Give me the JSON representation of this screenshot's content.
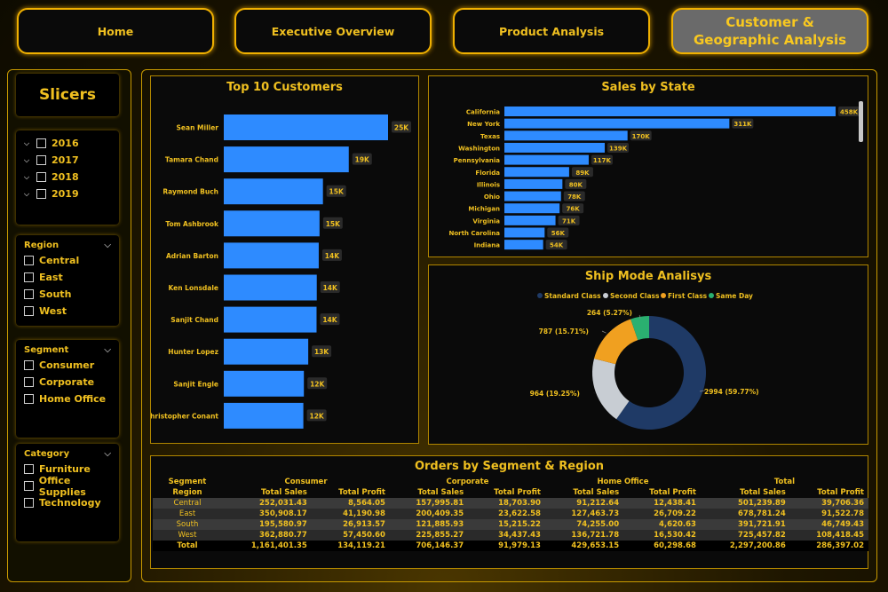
{
  "nav": {
    "home": "Home",
    "executive": "Executive Overview",
    "product": "Product Analysis",
    "customer": "Customer & Geographic Analysis"
  },
  "slicers": {
    "title": "Slicers",
    "years": [
      "2016",
      "2017",
      "2018",
      "2019"
    ],
    "region": {
      "title": "Region",
      "items": [
        "Central",
        "East",
        "South",
        "West"
      ]
    },
    "segment": {
      "title": "Segment",
      "items": [
        "Consumer",
        "Corporate",
        "Home Office"
      ]
    },
    "category": {
      "title": "Category",
      "items": [
        "Furniture",
        "Office Supplies",
        "Technology"
      ]
    }
  },
  "top_customers": {
    "title": "Top 10 Customers"
  },
  "sales_by_state": {
    "title": "Sales by State"
  },
  "ship_mode": {
    "title": "Ship Mode Analisys"
  },
  "orders": {
    "title": "Orders by Segment & Region",
    "seg_label": "Segment",
    "region_label": "Region",
    "segments": [
      "Consumer",
      "Corporate",
      "Home Office",
      "Total"
    ],
    "sub_headers": [
      "Total Sales",
      "Total Profit"
    ],
    "rows": [
      {
        "region": "Central",
        "values": [
          "252,031.43",
          "8,564.05",
          "157,995.81",
          "18,703.90",
          "91,212.64",
          "12,438.41",
          "501,239.89",
          "39,706.36"
        ]
      },
      {
        "region": "East",
        "values": [
          "350,908.17",
          "41,190.98",
          "200,409.35",
          "23,622.58",
          "127,463.73",
          "26,709.22",
          "678,781.24",
          "91,522.78"
        ]
      },
      {
        "region": "South",
        "values": [
          "195,580.97",
          "26,913.57",
          "121,885.93",
          "15,215.22",
          "74,255.00",
          "4,620.63",
          "391,721.91",
          "46,749.43"
        ]
      },
      {
        "region": "West",
        "values": [
          "362,880.77",
          "57,450.60",
          "225,855.27",
          "34,437.43",
          "136,721.78",
          "16,530.42",
          "725,457.82",
          "108,418.45"
        ]
      }
    ],
    "total": {
      "region": "Total",
      "values": [
        "1,161,401.35",
        "134,119.21",
        "706,146.37",
        "91,979.13",
        "429,653.15",
        "60,298.68",
        "2,297,200.86",
        "286,397.02"
      ]
    }
  },
  "colors": {
    "accent": "#f0c020",
    "bar": "#2e8bff",
    "panel": "#0a0a0a",
    "border": "#b08600"
  },
  "chart_data": [
    {
      "type": "bar",
      "orientation": "horizontal",
      "title": "Top 10 Customers",
      "categories": [
        "Sean Miller",
        "Tamara Chand",
        "Raymond Buch",
        "Tom Ashbrook",
        "Adrian Barton",
        "Ken Lonsdale",
        "Sanjit Chand",
        "Hunter Lopez",
        "Sanjit Engle",
        "Christopher Conant"
      ],
      "values": [
        25040,
        19052,
        15117,
        14596,
        14474,
        14175,
        14142,
        12873,
        12209,
        12129
      ],
      "labels": [
        "25K",
        "19K",
        "15K",
        "15K",
        "14K",
        "14K",
        "14K",
        "13K",
        "12K",
        "12K"
      ]
    },
    {
      "type": "bar",
      "orientation": "horizontal",
      "title": "Sales by State",
      "categories": [
        "California",
        "New York",
        "Texas",
        "Washington",
        "Pennsylvania",
        "Florida",
        "Illinois",
        "Ohio",
        "Michigan",
        "Virginia",
        "North Carolina",
        "Indiana"
      ],
      "values": [
        457688,
        310876,
        170188,
        138641,
        116512,
        89474,
        80166,
        78258,
        76270,
        70637,
        55603,
        53555
      ],
      "labels": [
        "458K",
        "311K",
        "170K",
        "139K",
        "117K",
        "89K",
        "80K",
        "78K",
        "76K",
        "71K",
        "56K",
        "54K"
      ]
    },
    {
      "type": "pie",
      "donut": true,
      "title": "Ship Mode Analisys",
      "legend_position": "top",
      "series": [
        {
          "name": "Standard Class",
          "value": 2994,
          "label": "2994 (59.77%)",
          "color": "#1f3a66"
        },
        {
          "name": "Second Class",
          "value": 964,
          "label": "964 (19.25%)",
          "color": "#c8cdd3"
        },
        {
          "name": "First Class",
          "value": 787,
          "label": "787 (15.71%)",
          "color": "#f0a020"
        },
        {
          "name": "Same Day",
          "value": 264,
          "label": "264 (5.27%)",
          "color": "#2ab070"
        }
      ]
    }
  ]
}
